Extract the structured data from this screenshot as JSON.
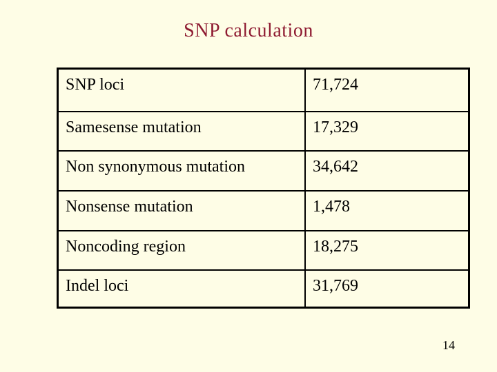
{
  "slide": {
    "title": "SNP calculation",
    "page_number": "14",
    "colors": {
      "background": "#FEFDE6",
      "title_text": "#8E1A31",
      "table_border": "#000000",
      "table_text": "#000000"
    },
    "table": {
      "rows": [
        {
          "label": "SNP loci",
          "value": "71,724"
        },
        {
          "label": "Samesense mutation",
          "value": "17,329"
        },
        {
          "label": "Non synonymous mutation",
          "value": "34,642"
        },
        {
          "label": "Nonsense mutation",
          "value": "1,478"
        },
        {
          "label": "Noncoding region",
          "value": "18,275"
        },
        {
          "label": "Indel loci",
          "value": "31,769"
        }
      ]
    }
  },
  "chart_data": {
    "type": "table",
    "title": "SNP calculation",
    "categories": [
      "SNP loci",
      "Samesense mutation",
      "Non synonymous mutation",
      "Nonsense mutation",
      "Noncoding region",
      "Indel loci"
    ],
    "values": [
      71724,
      17329,
      34642,
      1478,
      18275,
      31769
    ]
  }
}
